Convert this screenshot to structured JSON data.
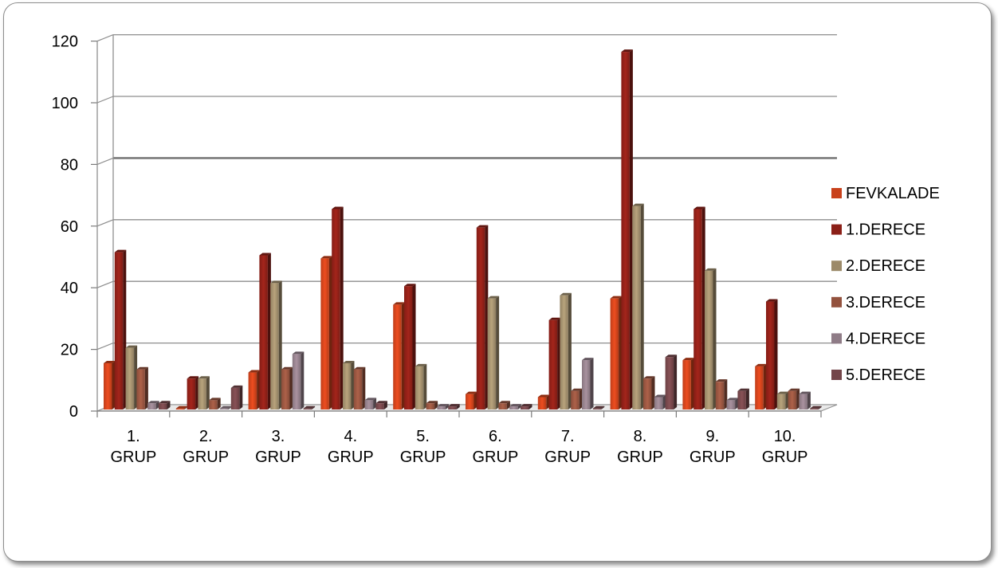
{
  "chart_data": {
    "type": "bar",
    "title": "",
    "xlabel": "",
    "ylabel": "",
    "ylim": [
      0,
      120
    ],
    "yticks": [
      0,
      20,
      40,
      60,
      80,
      100,
      120
    ],
    "grid": true,
    "legend_position": "right",
    "categories": [
      [
        "1.",
        "GRUP"
      ],
      [
        "2.",
        "GRUP"
      ],
      [
        "3.",
        "GRUP"
      ],
      [
        "4.",
        "GRUP"
      ],
      [
        "5.",
        "GRUP"
      ],
      [
        "6.",
        "GRUP"
      ],
      [
        "7.",
        "GRUP"
      ],
      [
        "8.",
        "GRUP"
      ],
      [
        "9.",
        "GRUP"
      ],
      [
        "10.",
        "GRUP"
      ]
    ],
    "series": [
      {
        "name": "FEVKALADE",
        "color": "#c9411b",
        "values": [
          15,
          0,
          12,
          49,
          34,
          5,
          4,
          36,
          16,
          14
        ]
      },
      {
        "name": "1.DERECE",
        "color": "#8b1f17",
        "values": [
          51,
          10,
          50,
          65,
          40,
          59,
          29,
          116,
          65,
          35
        ]
      },
      {
        "name": "2.DERECE",
        "color": "#9c8a69",
        "values": [
          20,
          10,
          41,
          15,
          14,
          36,
          37,
          66,
          45,
          5
        ]
      },
      {
        "name": "3.DERECE",
        "color": "#93523e",
        "values": [
          13,
          3,
          13,
          13,
          2,
          2,
          6,
          10,
          9,
          6
        ]
      },
      {
        "name": "4.DERECE",
        "color": "#8f7c87",
        "values": [
          2,
          0,
          18,
          3,
          1,
          1,
          16,
          4,
          3,
          5
        ]
      },
      {
        "name": "5.DERECE",
        "color": "#734549",
        "values": [
          2,
          7,
          0,
          2,
          1,
          1,
          0,
          17,
          6,
          0
        ]
      }
    ]
  }
}
